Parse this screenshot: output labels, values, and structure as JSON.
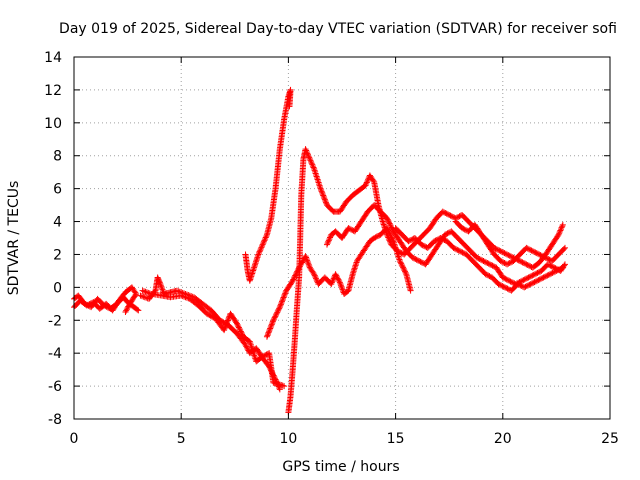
{
  "chart_data": {
    "type": "scatter",
    "title": "Day 019 of 2025, Sidereal Day-to-day VTEC variation (SDTVAR) for receiver sofi",
    "xlabel": "GPS time / hours",
    "ylabel": "SDTVAR / TECUs",
    "xlim": [
      0,
      25
    ],
    "ylim": [
      -8,
      14
    ],
    "xticks": [
      0,
      5,
      10,
      15,
      20,
      25
    ],
    "yticks": [
      -8,
      -6,
      -4,
      -2,
      0,
      2,
      4,
      6,
      8,
      10,
      12,
      14
    ],
    "grid": true,
    "marker": "+",
    "color": "#ff0000",
    "series": [
      {
        "name": "trace-1",
        "points": [
          [
            0.0,
            -1.2
          ],
          [
            0.3,
            -0.8
          ],
          [
            0.6,
            -1.1
          ],
          [
            0.9,
            -0.9
          ],
          [
            1.2,
            -1.3
          ],
          [
            1.5,
            -1.0
          ],
          [
            1.8,
            -1.4
          ],
          [
            2.1,
            -0.8
          ],
          [
            2.4,
            -0.3
          ],
          [
            2.7,
            0.0
          ],
          [
            2.9,
            -0.4
          ],
          [
            2.6,
            -1.0
          ],
          [
            2.4,
            -1.5
          ]
        ]
      },
      {
        "name": "trace-2",
        "points": [
          [
            0.0,
            -0.7
          ],
          [
            0.2,
            -0.5
          ],
          [
            0.5,
            -1.0
          ],
          [
            0.8,
            -1.2
          ],
          [
            1.1,
            -0.7
          ],
          [
            1.4,
            -1.1
          ],
          [
            1.7,
            -1.3
          ],
          [
            2.0,
            -1.0
          ],
          [
            2.3,
            -0.6
          ],
          [
            2.5,
            -0.9
          ],
          [
            2.8,
            -1.2
          ],
          [
            3.0,
            -1.4
          ]
        ]
      },
      {
        "name": "trace-3",
        "points": [
          [
            3.1,
            -0.5
          ],
          [
            3.5,
            -0.7
          ],
          [
            3.8,
            -0.2
          ],
          [
            3.9,
            0.6
          ],
          [
            4.0,
            0.3
          ],
          [
            4.2,
            -0.4
          ],
          [
            4.5,
            -0.3
          ],
          [
            4.8,
            -0.2
          ],
          [
            5.2,
            -0.4
          ],
          [
            5.6,
            -0.6
          ],
          [
            6.0,
            -1.0
          ],
          [
            6.4,
            -1.4
          ],
          [
            6.8,
            -2.0
          ],
          [
            7.2,
            -2.3
          ],
          [
            7.6,
            -2.8
          ],
          [
            8.0,
            -3.5
          ],
          [
            8.2,
            -4.0
          ],
          [
            8.5,
            -3.7
          ],
          [
            8.8,
            -4.3
          ],
          [
            9.1,
            -4.8
          ],
          [
            9.4,
            -5.6
          ],
          [
            9.6,
            -6.2
          ]
        ]
      },
      {
        "name": "trace-4",
        "points": [
          [
            3.2,
            -0.2
          ],
          [
            3.6,
            -0.4
          ],
          [
            4.1,
            -0.5
          ],
          [
            4.5,
            -0.6
          ],
          [
            5.0,
            -0.5
          ],
          [
            5.4,
            -0.7
          ],
          [
            5.8,
            -1.1
          ],
          [
            6.2,
            -1.6
          ],
          [
            6.6,
            -1.9
          ],
          [
            7.0,
            -2.6
          ],
          [
            7.3,
            -1.6
          ],
          [
            7.6,
            -2.2
          ],
          [
            7.9,
            -3.0
          ],
          [
            8.2,
            -3.3
          ],
          [
            8.5,
            -4.5
          ],
          [
            8.8,
            -4.2
          ],
          [
            9.1,
            -4.0
          ],
          [
            9.3,
            -5.8
          ],
          [
            9.6,
            -5.9
          ],
          [
            9.8,
            -6.0
          ]
        ]
      },
      {
        "name": "trace-5",
        "points": [
          [
            8.0,
            2.0
          ],
          [
            8.1,
            1.0
          ],
          [
            8.2,
            0.4
          ],
          [
            8.4,
            1.2
          ],
          [
            8.6,
            2.0
          ],
          [
            8.8,
            2.6
          ],
          [
            9.0,
            3.2
          ],
          [
            9.2,
            4.2
          ],
          [
            9.4,
            6.0
          ],
          [
            9.6,
            8.4
          ],
          [
            9.8,
            10.2
          ],
          [
            10.0,
            11.6
          ],
          [
            10.1,
            12.0
          ],
          [
            10.05,
            11.0
          ]
        ]
      },
      {
        "name": "trace-6",
        "points": [
          [
            10.0,
            -7.6
          ],
          [
            10.1,
            -6.6
          ],
          [
            10.2,
            -5.0
          ],
          [
            10.3,
            -3.2
          ],
          [
            10.4,
            -1.2
          ],
          [
            10.5,
            0.6
          ],
          [
            10.55,
            3.0
          ],
          [
            10.6,
            5.6
          ],
          [
            10.7,
            7.8
          ],
          [
            10.8,
            8.4
          ],
          [
            11.0,
            7.8
          ],
          [
            11.2,
            7.2
          ],
          [
            11.5,
            6.0
          ],
          [
            11.8,
            5.0
          ],
          [
            12.1,
            4.6
          ],
          [
            12.4,
            4.6
          ],
          [
            12.7,
            5.2
          ],
          [
            13.0,
            5.6
          ],
          [
            13.3,
            5.9
          ],
          [
            13.6,
            6.2
          ],
          [
            13.8,
            6.8
          ],
          [
            14.0,
            6.4
          ],
          [
            14.2,
            5.0
          ],
          [
            14.4,
            4.0
          ],
          [
            14.6,
            3.2
          ],
          [
            14.8,
            2.6
          ],
          [
            15.1,
            2.2
          ],
          [
            15.4,
            2.0
          ],
          [
            15.7,
            2.4
          ],
          [
            16.0,
            2.8
          ],
          [
            16.3,
            3.2
          ],
          [
            16.6,
            3.6
          ],
          [
            16.9,
            4.2
          ],
          [
            17.2,
            4.6
          ],
          [
            17.5,
            4.4
          ],
          [
            17.8,
            4.2
          ],
          [
            18.1,
            4.4
          ],
          [
            18.4,
            4.0
          ],
          [
            18.7,
            3.6
          ],
          [
            19.0,
            3.2
          ],
          [
            19.3,
            2.8
          ],
          [
            19.6,
            2.4
          ],
          [
            19.9,
            2.2
          ],
          [
            20.2,
            2.0
          ],
          [
            20.5,
            1.8
          ],
          [
            20.8,
            1.6
          ],
          [
            21.1,
            1.4
          ],
          [
            21.4,
            1.2
          ],
          [
            21.7,
            1.5
          ],
          [
            22.0,
            2.0
          ],
          [
            22.3,
            2.6
          ],
          [
            22.6,
            3.2
          ],
          [
            22.8,
            3.8
          ]
        ]
      },
      {
        "name": "trace-7",
        "points": [
          [
            9.0,
            -3.0
          ],
          [
            9.3,
            -2.0
          ],
          [
            9.6,
            -1.2
          ],
          [
            9.9,
            -0.2
          ],
          [
            10.2,
            0.4
          ],
          [
            10.5,
            1.2
          ],
          [
            10.8,
            1.9
          ],
          [
            11.0,
            1.2
          ],
          [
            11.2,
            0.8
          ],
          [
            11.4,
            0.2
          ],
          [
            11.7,
            0.6
          ],
          [
            12.0,
            0.2
          ],
          [
            12.2,
            0.8
          ],
          [
            12.4,
            0.3
          ],
          [
            12.6,
            -0.4
          ],
          [
            12.8,
            -0.2
          ],
          [
            13.0,
            0.8
          ],
          [
            13.2,
            1.6
          ],
          [
            13.4,
            2.0
          ],
          [
            13.6,
            2.4
          ],
          [
            13.8,
            2.8
          ],
          [
            14.0,
            3.0
          ],
          [
            14.3,
            3.2
          ],
          [
            14.6,
            3.6
          ],
          [
            14.9,
            2.8
          ],
          [
            15.2,
            1.6
          ],
          [
            15.5,
            0.8
          ],
          [
            15.7,
            -0.2
          ]
        ]
      },
      {
        "name": "trace-8",
        "points": [
          [
            11.8,
            2.6
          ],
          [
            12.0,
            3.2
          ],
          [
            12.2,
            3.4
          ],
          [
            12.5,
            3.0
          ],
          [
            12.8,
            3.6
          ],
          [
            13.1,
            3.4
          ],
          [
            13.4,
            4.0
          ],
          [
            13.7,
            4.6
          ],
          [
            14.0,
            5.0
          ],
          [
            14.3,
            4.6
          ],
          [
            14.6,
            4.2
          ],
          [
            14.9,
            3.4
          ],
          [
            15.2,
            2.8
          ],
          [
            15.5,
            2.2
          ],
          [
            15.8,
            1.8
          ],
          [
            16.1,
            1.6
          ],
          [
            16.4,
            1.4
          ],
          [
            16.7,
            2.0
          ],
          [
            17.0,
            2.6
          ],
          [
            17.3,
            3.2
          ],
          [
            17.6,
            3.4
          ],
          [
            17.9,
            3.0
          ],
          [
            18.2,
            2.6
          ],
          [
            18.5,
            2.2
          ],
          [
            18.8,
            1.8
          ],
          [
            19.1,
            1.6
          ],
          [
            19.4,
            1.4
          ],
          [
            19.7,
            1.2
          ],
          [
            20.0,
            0.6
          ],
          [
            20.3,
            0.4
          ],
          [
            20.6,
            0.2
          ],
          [
            20.9,
            0.4
          ],
          [
            21.2,
            0.6
          ],
          [
            21.5,
            0.8
          ],
          [
            21.8,
            1.0
          ],
          [
            22.1,
            1.4
          ],
          [
            22.4,
            1.2
          ],
          [
            22.7,
            1.0
          ],
          [
            22.9,
            1.4
          ]
        ]
      },
      {
        "name": "trace-9",
        "points": [
          [
            15.0,
            3.6
          ],
          [
            15.3,
            3.2
          ],
          [
            15.6,
            2.8
          ],
          [
            15.9,
            3.0
          ],
          [
            16.2,
            2.6
          ],
          [
            16.5,
            2.4
          ],
          [
            16.8,
            2.8
          ],
          [
            17.1,
            3.0
          ],
          [
            17.4,
            2.8
          ],
          [
            17.7,
            2.4
          ],
          [
            18.0,
            2.2
          ],
          [
            18.3,
            2.0
          ],
          [
            18.6,
            1.6
          ],
          [
            18.9,
            1.2
          ],
          [
            19.2,
            0.8
          ],
          [
            19.5,
            0.6
          ],
          [
            19.8,
            0.2
          ],
          [
            20.1,
            0.0
          ],
          [
            20.4,
            -0.2
          ],
          [
            20.7,
            0.2
          ],
          [
            21.0,
            0.0
          ],
          [
            21.3,
            0.2
          ],
          [
            21.6,
            0.4
          ],
          [
            21.9,
            0.6
          ],
          [
            22.2,
            0.8
          ],
          [
            22.5,
            1.0
          ],
          [
            22.8,
            1.2
          ]
        ]
      },
      {
        "name": "trace-10",
        "points": [
          [
            17.8,
            4.0
          ],
          [
            18.1,
            3.6
          ],
          [
            18.4,
            3.4
          ],
          [
            18.7,
            3.8
          ],
          [
            19.0,
            3.2
          ],
          [
            19.3,
            2.6
          ],
          [
            19.6,
            2.0
          ],
          [
            19.9,
            1.6
          ],
          [
            20.2,
            1.4
          ],
          [
            20.5,
            1.6
          ],
          [
            20.8,
            2.0
          ],
          [
            21.1,
            2.4
          ],
          [
            21.4,
            2.2
          ],
          [
            21.7,
            2.0
          ],
          [
            22.0,
            1.8
          ],
          [
            22.3,
            1.6
          ],
          [
            22.6,
            2.0
          ],
          [
            22.9,
            2.4
          ]
        ]
      }
    ]
  }
}
